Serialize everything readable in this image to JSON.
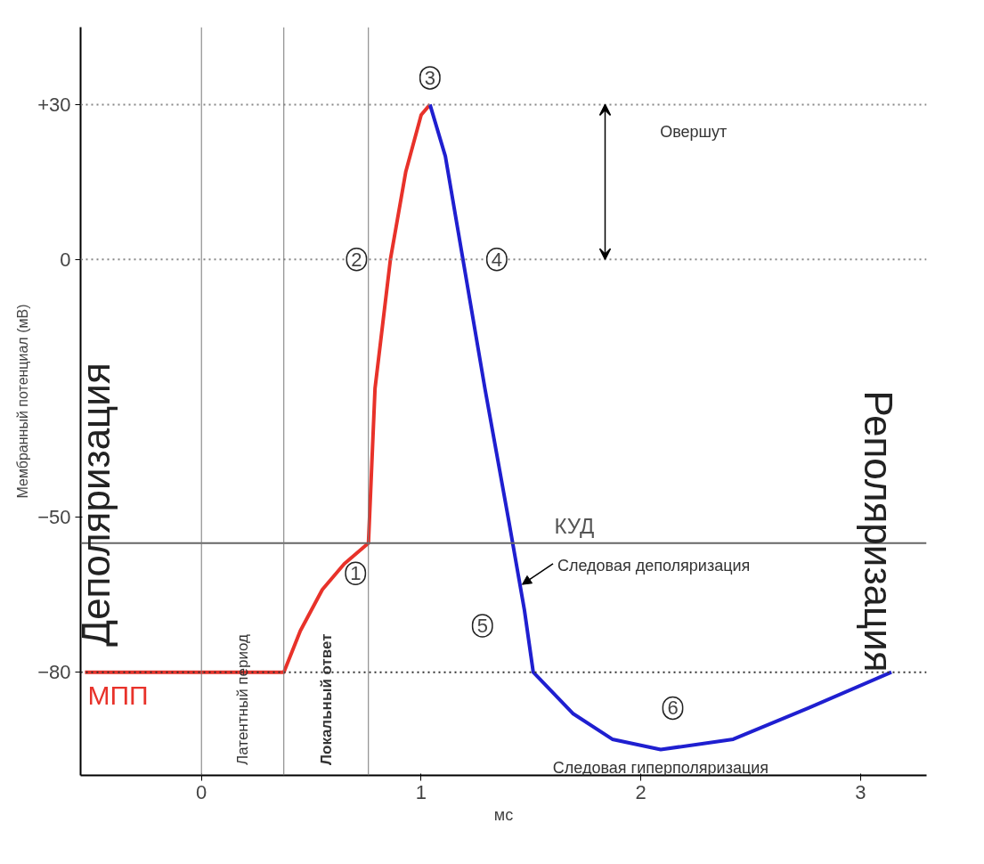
{
  "chart_data": {
    "type": "line",
    "ylabel": "Мембранный потенциал (мВ)",
    "xlabel": "мс",
    "xlim": [
      -0.55,
      3.3
    ],
    "ylim": [
      -100,
      45
    ],
    "xticks": [
      0,
      1,
      2,
      3
    ],
    "yticks": [
      {
        "value": 30,
        "label": "+30"
      },
      0,
      -50,
      -80
    ],
    "grid": false,
    "series": [
      {
        "color": "#e8322a",
        "x": [
          -0.53,
          0.375,
          0.45,
          0.55,
          0.65,
          0.76,
          0.79,
          0.86,
          0.93,
          1.0,
          1.04
        ],
        "values": [
          -80,
          -80,
          -72,
          -64,
          -59,
          -55,
          -25,
          0,
          17,
          28,
          30
        ]
      },
      {
        "color": "#1f1fd0",
        "x": [
          1.04,
          1.11,
          1.19,
          1.29,
          1.4,
          1.47,
          1.51,
          1.69,
          1.87,
          2.09,
          2.42,
          2.76,
          3.14
        ],
        "values": [
          30,
          20,
          0,
          -25,
          -51,
          -68,
          -80,
          -88,
          -93,
          -95,
          -93,
          -87,
          -80
        ]
      }
    ],
    "ref_lines": [
      {
        "axis": "y",
        "value": 30,
        "line_style": "dotted",
        "color": "#888888"
      },
      {
        "axis": "y",
        "value": 0,
        "line_style": "dotted",
        "color": "#888888"
      },
      {
        "axis": "y",
        "value": -80,
        "line_style": "dotted",
        "color": "#333333",
        "label": "МПП"
      },
      {
        "axis": "y",
        "value": -55,
        "line_style": "solid",
        "color": "#666666",
        "label": "КУД"
      },
      {
        "axis": "x",
        "value": 0,
        "line_style": "solid",
        "color": "#777777"
      },
      {
        "axis": "x",
        "value": 0.375,
        "line_style": "solid",
        "color": "#777777"
      },
      {
        "axis": "x",
        "value": 0.76,
        "line_style": "solid",
        "color": "#777777"
      }
    ],
    "annotations": [
      "Деполяризация",
      "Реполяризация",
      "Латентный период",
      "Локальный ответ",
      "Овершут",
      {
        "text": "Следовая деполяризация",
        "x": 1.45,
        "y": -63
      },
      {
        "text": "Следовая гиперполяризация",
        "x": 2.09,
        "y": -95
      },
      "1",
      {
        "text": "2",
        "x": 0.86,
        "y": 0
      },
      {
        "text": "3",
        "x": 1.04,
        "y": 30
      },
      {
        "text": "4",
        "x": 1.19,
        "y": 0
      },
      "5",
      "6"
    ]
  }
}
